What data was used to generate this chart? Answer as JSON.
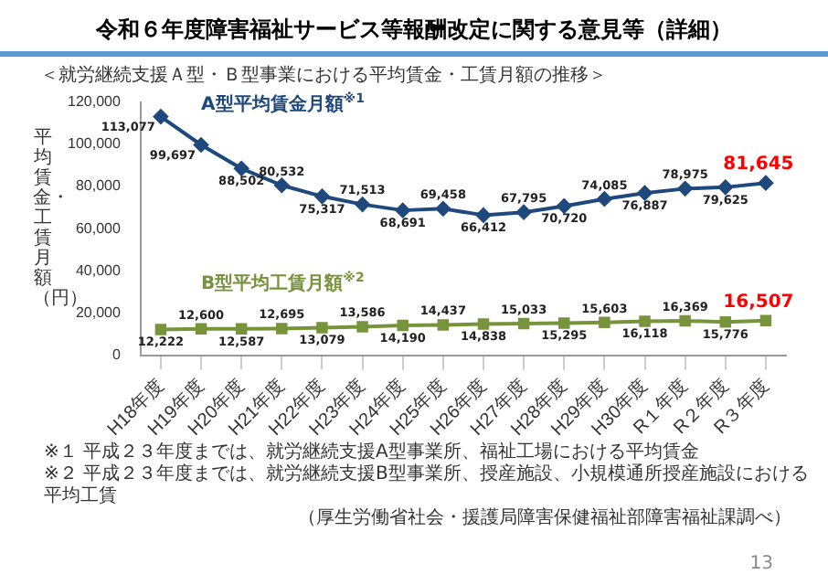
{
  "chart_data": {
    "type": "line",
    "title": "令和６年度障害福祉サービス等報酬改定に関する意見等（詳細）",
    "subtitle": "＜就労継続支援Ａ型・Ｂ型事業における平均賃金・工賃月額の推移＞",
    "ylabel": "平均賃金・工賃月額（円）",
    "categories": [
      "H18年度",
      "H19年度",
      "H20年度",
      "H21年度",
      "H22年度",
      "H23年度",
      "H24年度",
      "H25年度",
      "H26年度",
      "H27年度",
      "H28年度",
      "H29年度",
      "H30年度",
      "R１年度",
      "R２年度",
      "R３年度"
    ],
    "series": [
      {
        "name": "A型平均賃金月額$^{※1}$",
        "color": "#1f497d",
        "marker": "diamond",
        "values": [
          113077,
          99697,
          88502,
          80532,
          75317,
          71513,
          68691,
          69458,
          66412,
          67795,
          70720,
          74085,
          76887,
          78975,
          79625,
          81645
        ],
        "value_labels": [
          "113,077",
          "99,697",
          "88,502",
          "80,532",
          "75,317",
          "71,513",
          "68,691",
          "69,458",
          "66,412",
          "67,795",
          "70,720",
          "74,085",
          "76,887",
          "78,975",
          "79,625",
          "81,645"
        ]
      },
      {
        "name": "B型平均工賃月額$^{※2}$",
        "color": "#77933c",
        "marker": "square",
        "values": [
          12222,
          12600,
          12587,
          12695,
          13079,
          13586,
          14190,
          14437,
          14838,
          15033,
          15295,
          15603,
          16118,
          16369,
          15776,
          16507
        ],
        "value_labels": [
          "12,222",
          "12,600",
          "12,587",
          "12,695",
          "13,079",
          "13,586",
          "14,190",
          "14,437",
          "14,838",
          "15,033",
          "15,295",
          "15,603",
          "16,118",
          "16,369",
          "15,776",
          "16,507"
        ]
      }
    ],
    "ylim": [
      0,
      120000
    ],
    "yticks": [
      0,
      {
        "value": 20000,
        "label": "20,000"
      },
      {
        "value": 40000,
        "label": "40,000"
      },
      {
        "value": 60000,
        "label": "60,000"
      },
      {
        "value": 80000,
        "label": "80,000"
      },
      {
        "value": 100000,
        "label": "100,000"
      },
      {
        "value": 120000,
        "label": "120,000"
      }
    ],
    "grid": false,
    "legend": false,
    "line_style": "solid",
    "annotations": [
      "※１ 平成２３年度までは、就労継続支援A型事業所、福祉工場における平均賃金",
      "※２ 平成２３年度までは、就労継続支援B型事業所、授産施設、小規模通所授産施設における平均工賃",
      "（厚生労働省社会・援護局障害保健福祉部障害福祉課調べ）",
      "13"
    ]
  }
}
